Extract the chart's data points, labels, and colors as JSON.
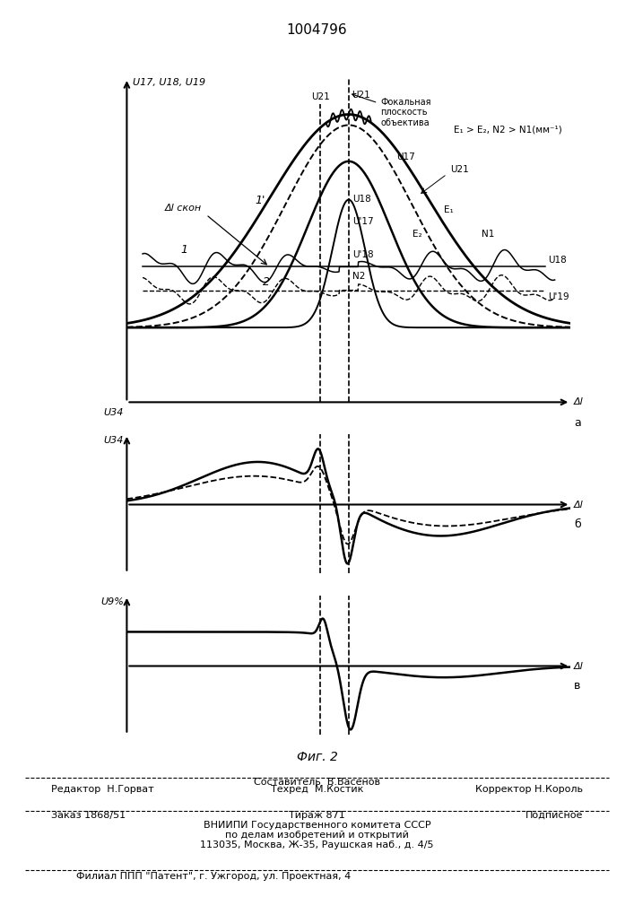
{
  "title": "1004796",
  "fig_label": "Фиг. 2",
  "panel_a_label": "а",
  "panel_b_label": "б",
  "panel_v_label": "в",
  "ylabel_a": "U17, U18, U19",
  "ylabel_b": "U34",
  "ylabel_v": "U9%",
  "xlabel": "Δl",
  "annotation_focal": "Фокальная\nплоскость\nобъектива",
  "annotation_dl_skon": "Δl скон",
  "annotation_cond": "E₁ > E₂, N2 > N1(мм⁻¹)",
  "bg_color": "#ffffff",
  "line_color": "#000000",
  "footer": {
    "line1_center": "Составитель  В.Васенов",
    "line2_left": "Редактор  Н.Горват",
    "line2_center": "Техред  М.Костик",
    "line2_right": "Корректор Н.Король",
    "line3_left": "Заказ 1868/51",
    "line3_center": "Тираж 871",
    "line3_right": "Подписное",
    "line4": "ВНИИПИ Государственного комитета СССР",
    "line5": "по делам изобретений и открытий",
    "line6": "113035, Москва, Ж-35, Раушская наб., д. 4/5",
    "line7": "Филиал ППП \"Патент\", г. Ужгород, ул. Проектная, 4"
  }
}
